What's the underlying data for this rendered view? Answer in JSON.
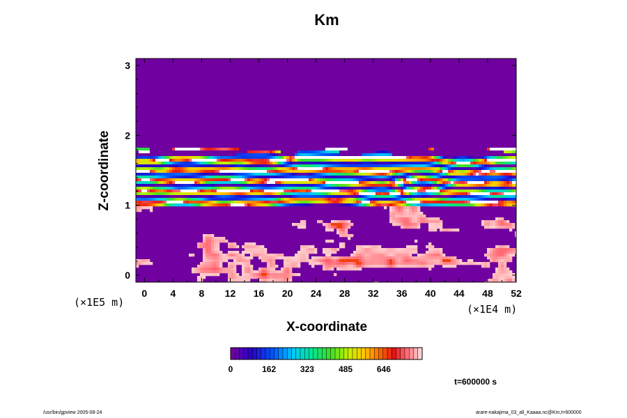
{
  "chart_data": {
    "type": "heatmap",
    "title": "Km",
    "xlabel": "X-coordinate",
    "ylabel": "Z-coordinate",
    "x_unit": "(×1E4 m)",
    "y_unit": "(×1E5 m)",
    "xlim": [
      -1.2,
      52
    ],
    "ylim": [
      -0.1,
      3.1
    ],
    "x_ticks": [
      0,
      4,
      8,
      12,
      16,
      20,
      24,
      28,
      32,
      36,
      40,
      44,
      48,
      52
    ],
    "y_ticks": [
      0,
      1,
      2,
      3
    ],
    "colorbar": {
      "ticks": [
        0,
        162,
        323,
        485,
        646
      ],
      "min": 0,
      "max": 808
    },
    "time_label": "t=600000 s",
    "regions": [
      {
        "z_range": [
          1.8,
          3.1
        ],
        "value": 0,
        "description_color": "purple"
      },
      {
        "z_range": [
          1.0,
          1.8
        ],
        "value_range": [
          0,
          808
        ],
        "pattern": "stratified layers"
      },
      {
        "z_range": [
          -0.1,
          1.0
        ],
        "value_range": [
          0,
          650
        ],
        "pattern": "convective cells"
      }
    ]
  },
  "footer": {
    "left": "/usr/bin/gpview 2005-08-24",
    "right": "arare-nakajima_03_all_Kaaaa.nc@Km,t=600000"
  },
  "colors": {
    "background_top": "#7000a0",
    "white": "#ffffff"
  }
}
